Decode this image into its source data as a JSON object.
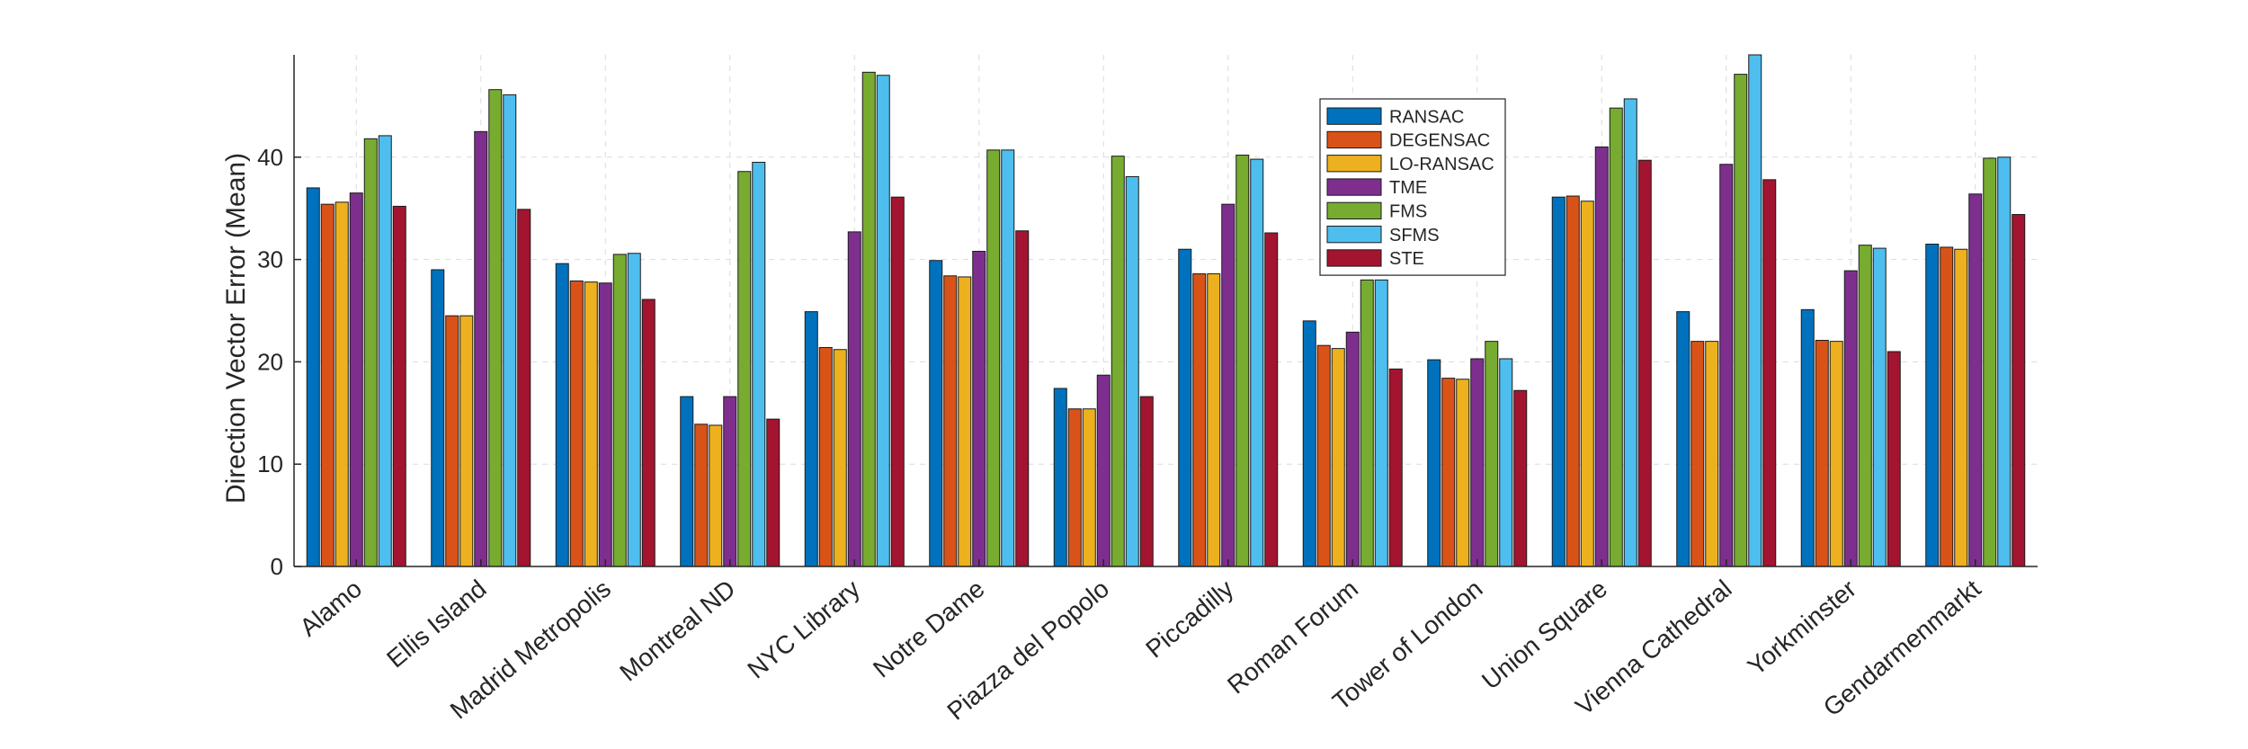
{
  "chart_data": {
    "type": "bar",
    "title": "",
    "xlabel": "",
    "ylabel": "Direction Vector Error (Mean)",
    "ylim": [
      0,
      50
    ],
    "yticks": [
      0,
      10,
      20,
      30,
      40
    ],
    "grid": true,
    "legend_position": "top-center",
    "categories": [
      "Alamo",
      "Ellis Island",
      "Madrid Metropolis",
      "Montreal ND",
      "NYC Library",
      "Notre Dame",
      "Piazza del Popolo",
      "Piccadilly",
      "Roman Forum",
      "Tower of London",
      "Union Square",
      "Vienna Cathedral",
      "Yorkminster",
      "Gendarmenmarkt"
    ],
    "series": [
      {
        "name": "RANSAC",
        "color": "#0072BD",
        "values": [
          37.0,
          29.0,
          29.6,
          16.6,
          24.9,
          29.9,
          17.4,
          31.0,
          24.0,
          20.2,
          36.1,
          24.9,
          25.1,
          31.5
        ]
      },
      {
        "name": "DEGENSAC",
        "color": "#D95319",
        "values": [
          35.4,
          24.5,
          27.9,
          13.9,
          21.4,
          28.4,
          15.4,
          28.6,
          21.6,
          18.4,
          36.2,
          22.0,
          22.1,
          31.2
        ]
      },
      {
        "name": "LO-RANSAC",
        "color": "#EDB120",
        "values": [
          35.6,
          24.5,
          27.8,
          13.8,
          21.2,
          28.3,
          15.4,
          28.6,
          21.3,
          18.3,
          35.7,
          22.0,
          22.0,
          31.0
        ]
      },
      {
        "name": "TME",
        "color": "#7E2F8E",
        "values": [
          36.5,
          42.5,
          27.7,
          16.6,
          32.7,
          30.8,
          18.7,
          35.4,
          22.9,
          20.3,
          41.0,
          39.3,
          28.9,
          36.4
        ]
      },
      {
        "name": "FMS",
        "color": "#77AC30",
        "values": [
          41.8,
          46.6,
          30.5,
          38.6,
          48.3,
          40.7,
          40.1,
          40.2,
          28.0,
          22.0,
          44.8,
          48.1,
          31.4,
          39.9
        ]
      },
      {
        "name": "SFMS",
        "color": "#4DBEEE",
        "values": [
          42.1,
          46.1,
          30.6,
          39.5,
          48.0,
          40.7,
          38.1,
          39.8,
          28.0,
          20.3,
          45.7,
          50.0,
          31.1,
          40.0
        ]
      },
      {
        "name": "STE",
        "color": "#A2142F",
        "values": [
          35.2,
          34.9,
          26.1,
          14.4,
          36.1,
          32.8,
          16.6,
          32.6,
          19.3,
          17.2,
          39.7,
          37.8,
          21.0,
          34.4
        ]
      }
    ]
  }
}
